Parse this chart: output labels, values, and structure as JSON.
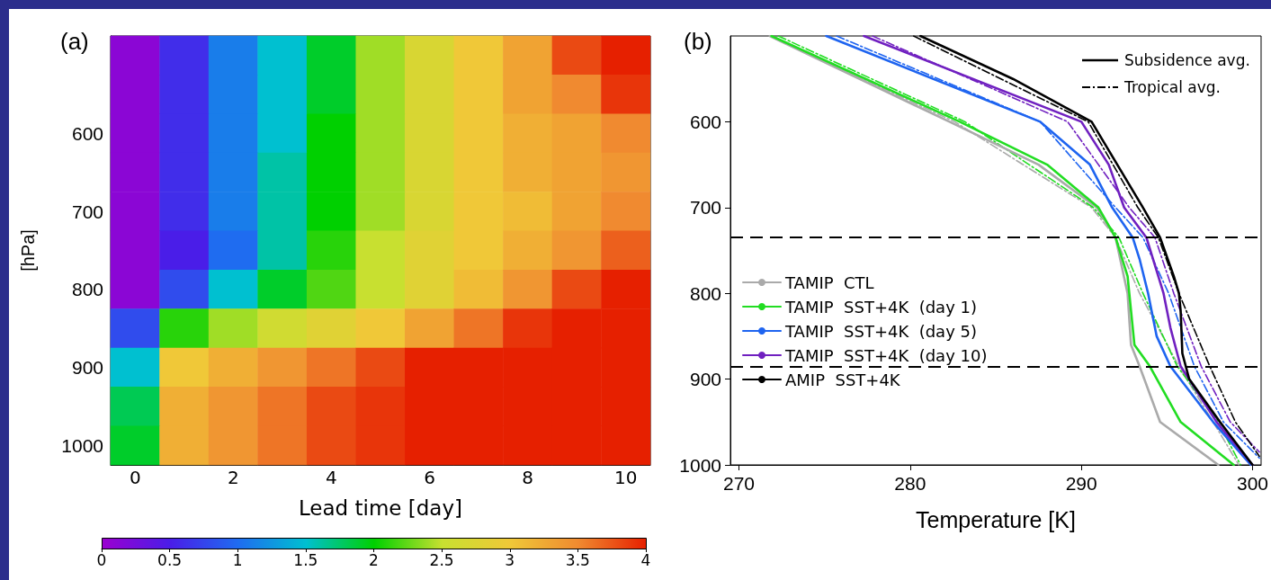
{
  "chart_data": [
    {
      "type": "heatmap",
      "title": "(a)",
      "xlabel": "Lead time [day]",
      "ylabel": "[hPa]",
      "categories": [
        "0",
        null,
        "2",
        null,
        "4",
        null,
        "6",
        null,
        "8",
        null,
        "10"
      ],
      "y_categories": [
        null,
        null,
        "600",
        null,
        "700",
        null,
        "800",
        null,
        "900",
        null,
        "1000"
      ],
      "cells": [
        [
          0.1,
          0.6,
          1.1,
          1.5,
          1.9,
          2.4,
          2.7,
          3.0,
          3.3,
          3.8,
          4.0
        ],
        [
          0.1,
          0.6,
          1.1,
          1.5,
          1.9,
          2.4,
          2.7,
          3.0,
          3.3,
          3.5,
          3.9
        ],
        [
          0.1,
          0.6,
          1.1,
          1.5,
          2.0,
          2.4,
          2.7,
          3.0,
          3.2,
          3.3,
          3.5
        ],
        [
          0.1,
          0.6,
          1.1,
          1.6,
          2.0,
          2.4,
          2.7,
          3.0,
          3.2,
          3.3,
          3.4
        ],
        [
          0.1,
          0.6,
          1.1,
          1.6,
          2.0,
          2.4,
          2.7,
          3.0,
          3.1,
          3.3,
          3.5
        ],
        [
          0.1,
          0.5,
          1.0,
          1.6,
          2.1,
          2.5,
          2.8,
          3.0,
          3.2,
          3.4,
          3.7
        ],
        [
          0.1,
          0.8,
          1.5,
          1.9,
          2.2,
          2.5,
          2.8,
          3.1,
          3.4,
          3.8,
          4.0
        ],
        [
          0.8,
          2.1,
          2.4,
          2.6,
          2.8,
          3.0,
          3.3,
          3.6,
          3.9,
          4.0,
          4.0
        ],
        [
          1.5,
          3.0,
          3.2,
          3.4,
          3.6,
          3.8,
          4.0,
          4.0,
          4.0,
          4.0,
          4.0
        ],
        [
          1.8,
          3.2,
          3.4,
          3.6,
          3.8,
          3.9,
          4.0,
          4.0,
          4.0,
          4.0,
          4.0
        ],
        [
          1.9,
          3.2,
          3.4,
          3.6,
          3.8,
          3.9,
          4.0,
          4.0,
          4.0,
          4.0,
          4.0
        ]
      ],
      "clim": [
        0,
        4
      ],
      "cticks": [
        0,
        0.5,
        1,
        1.5,
        2,
        2.5,
        3,
        3.5,
        4
      ]
    },
    {
      "type": "line",
      "title": "(b)",
      "xlabel": "Temperature [K]",
      "xlim": [
        269.5,
        300.5
      ],
      "xticks": [
        270,
        280,
        290,
        300
      ],
      "ylim": [
        1000,
        500
      ],
      "yticks": [
        600,
        700,
        800,
        900,
        1000
      ],
      "legend": "left",
      "grid": false,
      "annotations": [
        "Subsidence avg.",
        "Tropical avg."
      ],
      "ref_lines": [
        {
          "axis": "y",
          "value": 735,
          "line_style": "dashed",
          "color": "#000000"
        },
        {
          "axis": "y",
          "value": 885,
          "line_style": "dashed",
          "color": "#000000"
        }
      ],
      "series": [
        {
          "name": "TAMIP  CTL",
          "color": "#aaaaaa",
          "line_style": "solid",
          "x": [
            271.8,
            282.3,
            287.5,
            290.9,
            292.0,
            292.7,
            292.9,
            293.4,
            294.6,
            298.0
          ],
          "values": [
            500,
            600,
            650,
            700,
            735,
            800,
            860,
            885,
            950,
            1000
          ]
        },
        {
          "name": "TAMIP  SST+4K  (day 1)",
          "color": "#22dd22",
          "line_style": "solid",
          "x": [
            271.9,
            282.9,
            288.0,
            291.0,
            292.0,
            292.7,
            292.8,
            293.1,
            294.0,
            295.8,
            298.9
          ],
          "values": [
            500,
            600,
            650,
            700,
            735,
            780,
            800,
            860,
            885,
            950,
            1000
          ]
        },
        {
          "name": "TAMIP  SST+4K  (day 5)",
          "color": "#1e64f0",
          "line_style": "solid",
          "x": [
            275.1,
            287.6,
            290.5,
            291.8,
            293.0,
            293.4,
            293.9,
            294.4,
            295.2,
            297.7,
            299.9
          ],
          "values": [
            500,
            600,
            650,
            700,
            735,
            760,
            800,
            850,
            885,
            950,
            1000
          ]
        },
        {
          "name": "TAMIP  SST+4K  (day 10)",
          "color": "#7020c0",
          "line_style": "solid",
          "x": [
            277.3,
            290.0,
            291.6,
            292.5,
            293.8,
            294.8,
            295.2,
            295.8,
            297.9,
            300.0
          ],
          "values": [
            500,
            600,
            650,
            700,
            735,
            800,
            840,
            885,
            950,
            1000
          ]
        },
        {
          "name": "AMIP  SST+4K",
          "color": "#000000",
          "line_style": "solid",
          "x": [
            280.6,
            286.0,
            290.6,
            292.1,
            293.6,
            294.6,
            295.4,
            295.7,
            295.8,
            295.9,
            296.3,
            298.1,
            300.0
          ],
          "values": [
            500,
            550,
            600,
            650,
            700,
            735,
            780,
            800,
            820,
            870,
            900,
            950,
            1000
          ]
        },
        {
          "color": "#aaaaaa",
          "line_style": "dashdot",
          "x": [
            271.9,
            282.6,
            290.6,
            292.0,
            293.4,
            295.7,
            297.7,
            299.2
          ],
          "values": [
            500,
            600,
            700,
            735,
            800,
            885,
            950,
            1000
          ]
        },
        {
          "color": "#22dd22",
          "line_style": "dashdot",
          "x": [
            272.3,
            283.2,
            290.7,
            292.2,
            293.6,
            295.6,
            298.0,
            299.3
          ],
          "values": [
            500,
            600,
            700,
            735,
            800,
            885,
            950,
            1000
          ]
        },
        {
          "color": "#1e64f0",
          "line_style": "dashdot",
          "x": [
            275.7,
            287.6,
            292.0,
            293.6,
            295.1,
            296.6,
            298.3,
            300.4
          ],
          "values": [
            500,
            600,
            700,
            735,
            800,
            885,
            950,
            992
          ]
        },
        {
          "color": "#7020c0",
          "line_style": "dashdot",
          "x": [
            277.8,
            289.2,
            292.8,
            294.3,
            295.4,
            297.0,
            298.7,
            300.4
          ],
          "values": [
            500,
            600,
            700,
            735,
            800,
            885,
            950,
            985
          ]
        },
        {
          "color": "#000000",
          "line_style": "dashdot",
          "x": [
            280.2,
            290.4,
            293.3,
            294.5,
            295.7,
            297.5,
            299.0,
            300.4
          ],
          "values": [
            500,
            600,
            700,
            735,
            800,
            885,
            950,
            990
          ]
        }
      ]
    }
  ]
}
